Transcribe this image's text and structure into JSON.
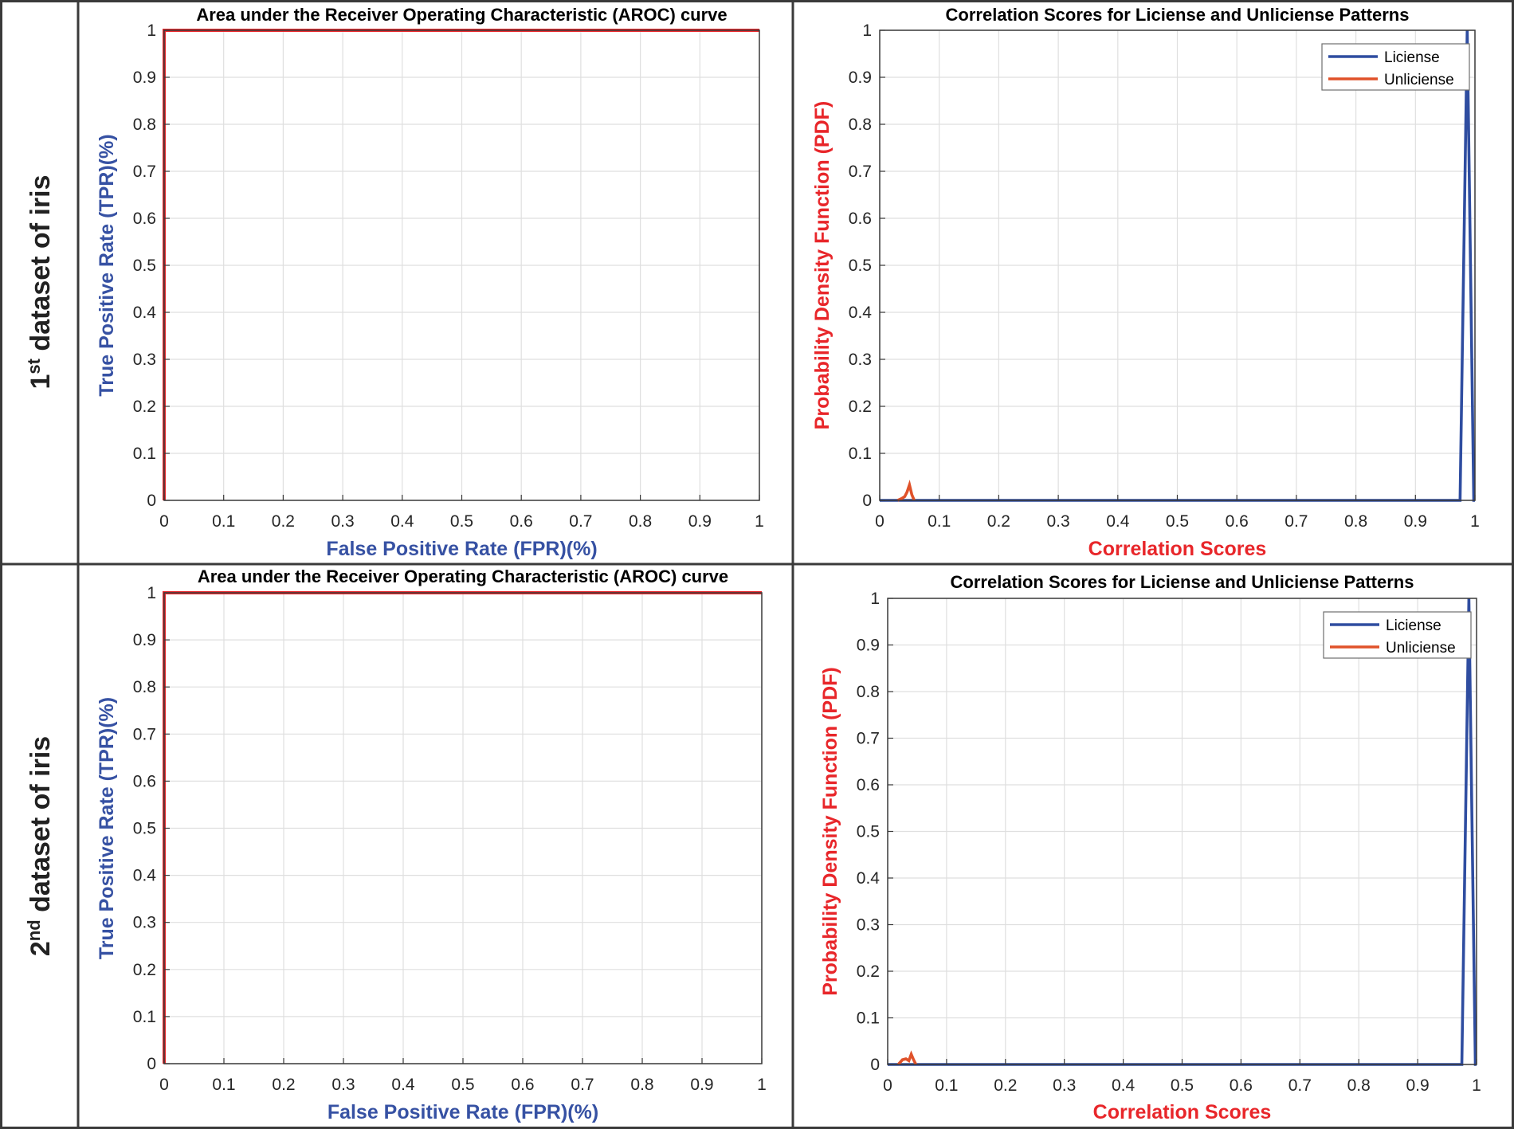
{
  "row_labels": [
    {
      "num": "1",
      "sup": "st",
      "rest": " dataset of iris"
    },
    {
      "num": "2",
      "sup": "nd",
      "rest": " dataset of iris"
    }
  ],
  "colors": {
    "roc_line": "#e8262a",
    "license": "#2f4da0",
    "unlicense": "#e0522a",
    "tpr_fpr_label": "#3651a3",
    "pdf_label": "#e8262a"
  },
  "chart_data": [
    {
      "type": "line",
      "title": "Area under the Receiver Operating Characteristic (AROC) curve",
      "xlabel": "False Positive Rate (FPR)(%)",
      "ylabel": "True Positive Rate (TPR)(%)",
      "xlim": [
        0,
        1
      ],
      "ylim": [
        0,
        1
      ],
      "xticks": [
        "0",
        "0.1",
        "0.2",
        "0.3",
        "0.4",
        "0.5",
        "0.6",
        "0.7",
        "0.8",
        "0.9",
        "1"
      ],
      "yticks": [
        "0",
        "0.1",
        "0.2",
        "0.3",
        "0.4",
        "0.5",
        "0.6",
        "0.7",
        "0.8",
        "0.9",
        "1"
      ],
      "grid": true,
      "series": [
        {
          "color": "#e8262a",
          "x": [
            0,
            0,
            1
          ],
          "y": [
            0,
            1,
            1
          ]
        }
      ]
    },
    {
      "type": "line",
      "title": "Correlation Scores for Liciense and Unliciense Patterns",
      "xlabel": "Correlation Scores",
      "ylabel": "Probability Density Function (PDF)",
      "xlim": [
        0,
        1
      ],
      "ylim": [
        0,
        1
      ],
      "xticks": [
        "0",
        "0.1",
        "0.2",
        "0.3",
        "0.4",
        "0.5",
        "0.6",
        "0.7",
        "0.8",
        "0.9",
        "1"
      ],
      "yticks": [
        "0",
        "0.1",
        "0.2",
        "0.3",
        "0.4",
        "0.5",
        "0.6",
        "0.7",
        "0.8",
        "0.9",
        "1"
      ],
      "grid": true,
      "legend": "top-right",
      "series": [
        {
          "name": "Liciense",
          "color": "#2f4da0",
          "x": [
            0,
            0.975,
            0.987,
            0.998,
            1.0
          ],
          "y": [
            0,
            0,
            1.0,
            0,
            0
          ]
        },
        {
          "name": "Unliciense",
          "color": "#e0522a",
          "x": [
            0.03,
            0.037,
            0.042,
            0.046,
            0.05,
            0.054,
            0.058
          ],
          "y": [
            0,
            0.004,
            0.008,
            0.018,
            0.033,
            0.012,
            0
          ]
        }
      ]
    },
    {
      "type": "line",
      "title": "Area under the Receiver Operating Characteristic (AROC) curve",
      "xlabel": "False Positive Rate (FPR)(%)",
      "ylabel": "True Positive Rate (TPR)(%)",
      "xlim": [
        0,
        1
      ],
      "ylim": [
        0,
        1
      ],
      "xticks": [
        "0",
        "0.1",
        "0.2",
        "0.3",
        "0.4",
        "0.5",
        "0.6",
        "0.7",
        "0.8",
        "0.9",
        "1"
      ],
      "yticks": [
        "0",
        "0.1",
        "0.2",
        "0.3",
        "0.4",
        "0.5",
        "0.6",
        "0.7",
        "0.8",
        "0.9",
        "1"
      ],
      "grid": true,
      "series": [
        {
          "color": "#e8262a",
          "x": [
            0,
            0,
            1
          ],
          "y": [
            0,
            1,
            1
          ]
        }
      ]
    },
    {
      "type": "line",
      "title": "Correlation Scores for Liciense and Unliciense Patterns",
      "xlabel": "Correlation Scores",
      "ylabel": "Probability Density Function (PDF)",
      "xlim": [
        0,
        1
      ],
      "ylim": [
        0,
        1
      ],
      "xticks": [
        "0",
        "0.1",
        "0.2",
        "0.3",
        "0.4",
        "0.5",
        "0.6",
        "0.7",
        "0.8",
        "0.9",
        "1"
      ],
      "yticks": [
        "0",
        "0.1",
        "0.2",
        "0.3",
        "0.4",
        "0.5",
        "0.6",
        "0.7",
        "0.8",
        "0.9",
        "1"
      ],
      "grid": true,
      "legend": "top-right",
      "series": [
        {
          "name": "Liciense",
          "color": "#2f4da0",
          "x": [
            0,
            0.975,
            0.987,
            0.998,
            1.0
          ],
          "y": [
            0,
            0,
            1.0,
            0,
            0
          ]
        },
        {
          "name": "Unliciense",
          "color": "#e0522a",
          "x": [
            0.018,
            0.025,
            0.031,
            0.036,
            0.04,
            0.044,
            0.048
          ],
          "y": [
            0,
            0.01,
            0.012,
            0.008,
            0.022,
            0.01,
            0
          ]
        }
      ]
    }
  ]
}
